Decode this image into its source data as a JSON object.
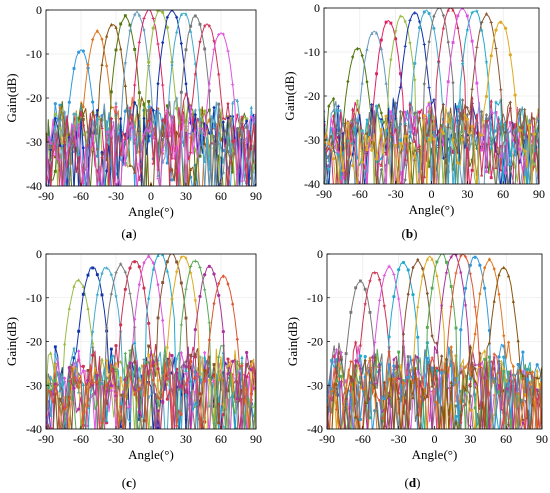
{
  "figure": {
    "colors": [
      "#3399dd",
      "#dd7722",
      "#885511",
      "#557711",
      "#6699bb",
      "#dd2266",
      "#99bb44",
      "#1133aa",
      "#44aacc",
      "#777777",
      "#cc3355",
      "#dd55dd",
      "#22aacc",
      "#885533",
      "#ddaa22",
      "#55aa55",
      "#aa3399",
      "#dd5533"
    ]
  },
  "chart_data": [
    {
      "type": "line",
      "panel_label": "(a)",
      "xlabel": "Angle(°)",
      "ylabel": "Gain(dB)",
      "xlim": [
        -90,
        90
      ],
      "ylim": [
        -40,
        0
      ],
      "xticks": [
        -90,
        -60,
        -30,
        0,
        30,
        60,
        90
      ],
      "yticks": [
        0,
        -10,
        -20,
        -30,
        -40
      ],
      "grid": true,
      "beam_peaks_deg": [
        -60,
        -46,
        -33,
        -22,
        -12,
        -2,
        8,
        18,
        28,
        38,
        48,
        60
      ],
      "beam_peak_gain_db": [
        -9,
        -5,
        -3,
        -1.5,
        -0.5,
        0,
        0,
        0,
        -0.5,
        -1.5,
        -3,
        -5
      ],
      "mainlobe_halfwidth_deg": 12,
      "sidelobe_range_db": [
        -40,
        -16
      ]
    },
    {
      "type": "line",
      "panel_label": "(b)",
      "xlabel": "Angle(°)",
      "ylabel": "Gain(dB)",
      "xlim": [
        -90,
        90
      ],
      "ylim": [
        -40,
        0
      ],
      "xticks": [
        -90,
        -60,
        -30,
        0,
        30,
        60,
        90
      ],
      "yticks": [
        0,
        -10,
        -20,
        -30,
        -40
      ],
      "grid": true,
      "beam_peaks_deg": [
        -62,
        -48,
        -36,
        -25,
        -14,
        -4,
        6,
        16,
        26,
        36,
        46,
        58
      ],
      "beam_peak_gain_db": [
        -9,
        -5,
        -3,
        -2,
        -1,
        -0.5,
        0,
        0,
        0,
        -0.5,
        -1.5,
        -3
      ],
      "mainlobe_halfwidth_deg": 12,
      "sidelobe_range_db": [
        -40,
        -17
      ]
    },
    {
      "type": "line",
      "panel_label": "(c)",
      "xlabel": "Angle(°)",
      "ylabel": "Gain(dB)",
      "xlim": [
        -90,
        90
      ],
      "ylim": [
        -40,
        0
      ],
      "xticks": [
        -90,
        -60,
        -30,
        0,
        30,
        60,
        90
      ],
      "yticks": [
        0,
        -10,
        -20,
        -30,
        -40
      ],
      "grid": true,
      "beam_peaks_deg": [
        -62,
        -50,
        -38,
        -26,
        -14,
        -2,
        8,
        18,
        28,
        38,
        50,
        62
      ],
      "beam_peak_gain_db": [
        -6,
        -3,
        -3,
        -2.5,
        -1.5,
        -0.5,
        0,
        0,
        -0.5,
        -1.5,
        -3,
        -5
      ],
      "mainlobe_halfwidth_deg": 13,
      "sidelobe_range_db": [
        -40,
        -17
      ]
    },
    {
      "type": "line",
      "panel_label": "(d)",
      "xlabel": "Angle(°)",
      "ylabel": "Gain(dB)",
      "xlim": [
        -90,
        90
      ],
      "ylim": [
        -40,
        0
      ],
      "xticks": [
        -90,
        -60,
        -30,
        0,
        30,
        60,
        90
      ],
      "yticks": [
        0,
        -10,
        -20,
        -30,
        -40
      ],
      "grid": true,
      "beam_peaks_deg": [
        -62,
        -50,
        -38,
        -26,
        -14,
        -4,
        6,
        16,
        24,
        34,
        46,
        58
      ],
      "beam_peak_gain_db": [
        -6,
        -4,
        -3,
        -2,
        -1.5,
        -0.5,
        0,
        0,
        0,
        -0.5,
        -1.5,
        -3
      ],
      "mainlobe_halfwidth_deg": 12,
      "sidelobe_range_db": [
        -40,
        -17
      ]
    }
  ]
}
